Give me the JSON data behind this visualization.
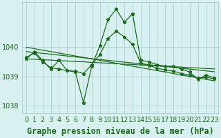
{
  "title": "Graphe pression niveau de la mer (hPa)",
  "xlabel_hours": [
    0,
    1,
    2,
    3,
    4,
    5,
    6,
    7,
    8,
    9,
    10,
    11,
    12,
    13,
    14,
    15,
    16,
    17,
    18,
    19,
    20,
    21,
    22,
    23
  ],
  "series_zigzag": [
    1039.6,
    1039.85,
    1039.55,
    1039.25,
    1039.55,
    1039.2,
    1039.15,
    1038.1,
    1039.35,
    1040.05,
    1040.95,
    1041.3,
    1040.85,
    1041.15,
    1039.55,
    1039.5,
    1039.4,
    1039.35,
    1039.35,
    1039.25,
    1039.15,
    1038.9,
    1039.05,
    1038.95
  ],
  "series_linear1": [
    1039.85,
    1039.82,
    1039.79,
    1039.76,
    1039.73,
    1039.7,
    1039.67,
    1039.64,
    1039.61,
    1039.58,
    1039.55,
    1039.52,
    1039.49,
    1039.46,
    1039.43,
    1039.4,
    1039.37,
    1039.34,
    1039.31,
    1039.28,
    1039.25,
    1039.22,
    1039.19,
    1039.16
  ],
  "series_linear2": [
    1039.6,
    1039.59,
    1039.57,
    1039.56,
    1039.54,
    1039.53,
    1039.51,
    1039.5,
    1039.48,
    1039.47,
    1039.45,
    1039.44,
    1039.42,
    1039.41,
    1039.39,
    1039.38,
    1039.36,
    1039.35,
    1039.33,
    1039.32,
    1039.3,
    1039.29,
    1039.27,
    1039.26
  ],
  "series_linear3": [
    1040.0,
    1039.95,
    1039.9,
    1039.85,
    1039.8,
    1039.75,
    1039.7,
    1039.65,
    1039.6,
    1039.55,
    1039.5,
    1039.45,
    1039.4,
    1039.35,
    1039.3,
    1039.25,
    1039.2,
    1039.15,
    1039.1,
    1039.05,
    1039.0,
    1038.95,
    1038.9,
    1038.85
  ],
  "series_smooth": [
    1039.65,
    1039.8,
    1039.5,
    1039.3,
    1039.25,
    1039.2,
    1039.18,
    1039.1,
    1039.4,
    1039.75,
    1040.3,
    1040.55,
    1040.35,
    1040.1,
    1039.45,
    1039.38,
    1039.28,
    1039.22,
    1039.18,
    1039.1,
    1039.05,
    1038.95,
    1038.97,
    1038.92
  ],
  "line_color": "#1a6b1a",
  "bg_color": "#d8f0f0",
  "grid_color": "#a0c8c8",
  "text_color": "#1a6b1a",
  "ylim": [
    1037.75,
    1041.55
  ],
  "yticks": [
    1038,
    1039,
    1040
  ],
  "title_fontsize": 8.5,
  "tick_fontsize": 7
}
